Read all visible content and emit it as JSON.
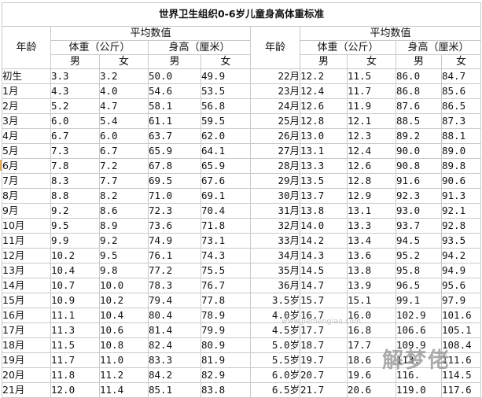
{
  "title": "世界卫生组织0-6岁儿童身高体重标准",
  "headers": {
    "age": "年龄",
    "avg": "平均数值",
    "weight": "体重（公斤）",
    "height": "身高（厘米）",
    "male": "男",
    "female": "女"
  },
  "left_rows": [
    [
      "初生",
      "3.3",
      "3.2",
      "50.0",
      "49.9"
    ],
    [
      "1月",
      "4.3",
      "4.0",
      "54.6",
      "53.5"
    ],
    [
      "2月",
      "5.2",
      "4.7",
      "58.1",
      "56.8"
    ],
    [
      "3月",
      "6.0",
      "5.4",
      "61.1",
      "59.5"
    ],
    [
      "4月",
      "6.7",
      "6.0",
      "63.7",
      "62.0"
    ],
    [
      "5月",
      "7.3",
      "6.7",
      "65.9",
      "64.1"
    ],
    [
      "6月",
      "7.8",
      "7.2",
      "67.8",
      "65.9"
    ],
    [
      "7月",
      "8.3",
      "7.7",
      "69.5",
      "67.6"
    ],
    [
      "8月",
      "8.8",
      "8.2",
      "71.0",
      "69.1"
    ],
    [
      "9月",
      "9.2",
      "8.6",
      "72.3",
      "70.4"
    ],
    [
      "10月",
      "9.5",
      "8.9",
      "73.6",
      "71.8"
    ],
    [
      "11月",
      "9.9",
      "9.2",
      "74.9",
      "73.1"
    ],
    [
      "12月",
      "10.2",
      "9.5",
      "76.1",
      "74.3"
    ],
    [
      "13月",
      "10.4",
      "9.8",
      "77.2",
      "75.5"
    ],
    [
      "14月",
      "10.7",
      "10.0",
      "78.3",
      "76.7"
    ],
    [
      "15月",
      "10.9",
      "10.2",
      "79.4",
      "77.8"
    ],
    [
      "16月",
      "11.1",
      "10.4",
      "80.4",
      "78.9"
    ],
    [
      "17月",
      "11.3",
      "10.6",
      "81.4",
      "79.9"
    ],
    [
      "18月",
      "11.5",
      "10.8",
      "82.4",
      "80.9"
    ],
    [
      "19月",
      "11.7",
      "11.0",
      "83.3",
      "81.9"
    ],
    [
      "20月",
      "11.8",
      "11.2",
      "84.2",
      "82.9"
    ],
    [
      "21月",
      "12.0",
      "11.4",
      "85.1",
      "83.8"
    ]
  ],
  "right_rows": [
    [
      "22月",
      "12.2",
      "11.5",
      "86.0",
      "84.7"
    ],
    [
      "23月",
      "12.4",
      "11.7",
      "86.8",
      "85.6"
    ],
    [
      "24月",
      "12.6",
      "11.9",
      "87.6",
      "86.5"
    ],
    [
      "25月",
      "12.8",
      "12.1",
      "88.5",
      "87.3"
    ],
    [
      "26月",
      "13.0",
      "12.3",
      "89.2",
      "88.1"
    ],
    [
      "27月",
      "13.1",
      "12.4",
      "90.0",
      "89.0"
    ],
    [
      "28月",
      "13.3",
      "12.6",
      "90.8",
      "89.8"
    ],
    [
      "29月",
      "13.5",
      "12.8",
      "91.6",
      "90.6"
    ],
    [
      "30月",
      "13.7",
      "12.9",
      "92.3",
      "91.3"
    ],
    [
      "31月",
      "13.8",
      "13.1",
      "93.0",
      "92.1"
    ],
    [
      "32月",
      "14.0",
      "13.3",
      "93.7",
      "92.8"
    ],
    [
      "33月",
      "14.2",
      "13.4",
      "94.5",
      "93.5"
    ],
    [
      "34月",
      "14.3",
      "13.6",
      "95.2",
      "94.2"
    ],
    [
      "35月",
      "14.5",
      "13.8",
      "95.8",
      "94.9"
    ],
    [
      "36月",
      "14.7",
      "13.9",
      "96.5",
      "95.6"
    ],
    [
      "3.5岁",
      "15.7",
      "15.1",
      "99.1",
      "97.9"
    ],
    [
      "4.0岁",
      "16.7",
      "16.0",
      "102.9",
      "101.6"
    ],
    [
      "4.5岁",
      "17.7",
      "16.8",
      "106.6",
      "105.1"
    ],
    [
      "5.0岁",
      "18.7",
      "17.7",
      "109.9",
      "108.4"
    ],
    [
      "5.5岁",
      "19.7",
      "18.6",
      "113.",
      "111.6"
    ],
    [
      "6.0岁",
      "20.7",
      "19.6",
      "116.",
      "114.5"
    ],
    [
      "6.5岁",
      "21.7",
      "20.6",
      "119.0",
      "117.6"
    ]
  ],
  "watermark": {
    "text": "解梦佬",
    "url": "www.jiemenglao.com"
  }
}
